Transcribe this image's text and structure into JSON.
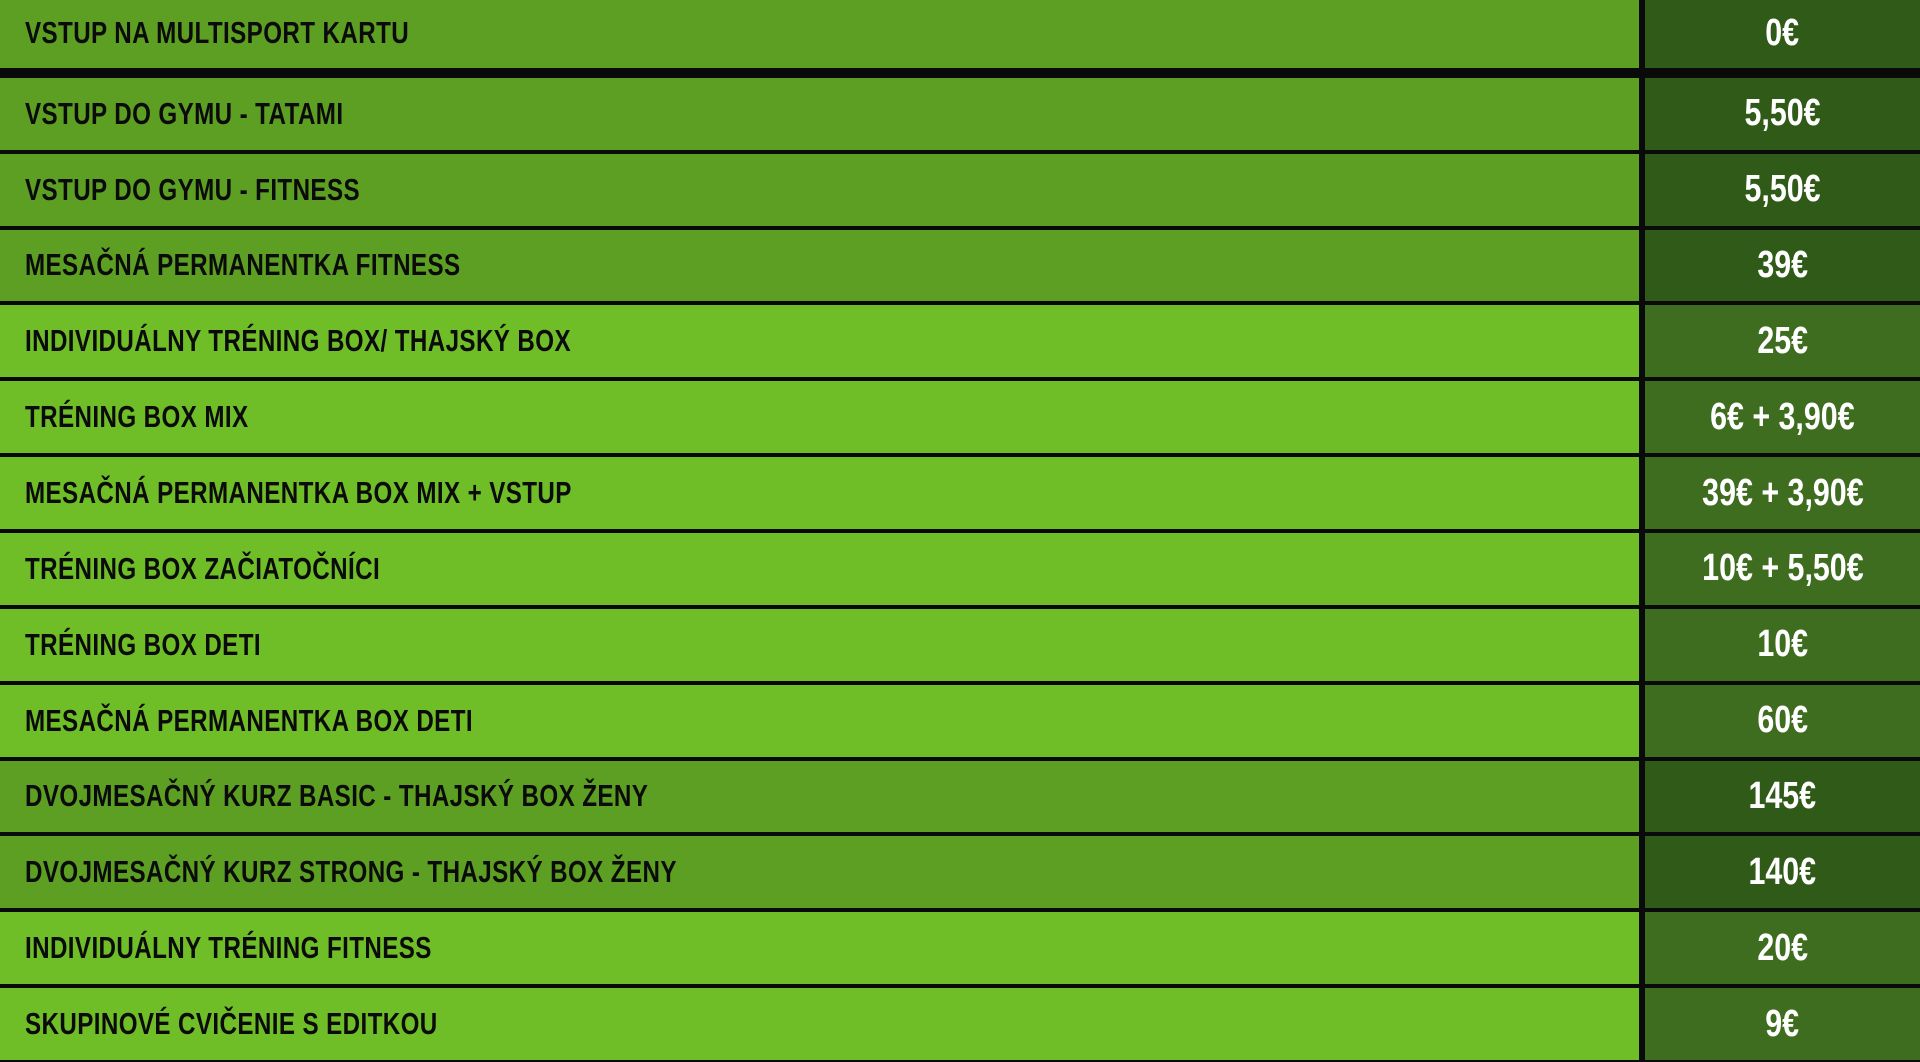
{
  "colors": {
    "row_dark": "#5c9f22",
    "row_bright": "#6fbe28",
    "price_dark": "#305a17",
    "price_bright": "#3f6d1f",
    "separator": "#0a0a0a",
    "price_text": "#ffffff",
    "name_text": "#0b0b0b"
  },
  "price_list": [
    {
      "name": "VSTUP NA MULTISPORT KARTU",
      "price": "0€",
      "tone": "dark"
    },
    {
      "name": "VSTUP DO GYMU - TATAMI",
      "price": "5,50€",
      "tone": "dark"
    },
    {
      "name": "VSTUP DO GYMU - FITNESS",
      "price": "5,50€",
      "tone": "dark"
    },
    {
      "name": "MESAČNÁ PERMANENTKA FITNESS",
      "price": "39€",
      "tone": "dark"
    },
    {
      "name": "INDIVIDUÁLNY TRÉNING BOX/ THAJSKÝ BOX",
      "price": "25€",
      "tone": "bright"
    },
    {
      "name": "TRÉNING BOX MIX",
      "price": "6€ + 3,90€",
      "tone": "bright"
    },
    {
      "name": "MESAČNÁ PERMANENTKA BOX MIX + VSTUP",
      "price": "39€ + 3,90€",
      "tone": "bright"
    },
    {
      "name": "TRÉNING BOX ZAČIATOČNÍCI",
      "price": "10€ + 5,50€",
      "tone": "bright"
    },
    {
      "name": "TRÉNING BOX DETI",
      "price": "10€",
      "tone": "bright"
    },
    {
      "name": "MESAČNÁ PERMANENTKA BOX DETI",
      "price": "60€",
      "tone": "bright"
    },
    {
      "name": "DVOJMESAČNÝ KURZ BASIC - THAJSKÝ BOX ŽENY",
      "price": "145€",
      "tone": "dark"
    },
    {
      "name": "DVOJMESAČNÝ KURZ STRONG - THAJSKÝ BOX ŽENY",
      "price": "140€",
      "tone": "dark"
    },
    {
      "name": "INDIVIDUÁLNY TRÉNING FITNESS",
      "price": "20€",
      "tone": "bright"
    },
    {
      "name": "SKUPINOVÉ CVIČENIE S EDITKOU",
      "price": "9€",
      "tone": "bright"
    }
  ]
}
